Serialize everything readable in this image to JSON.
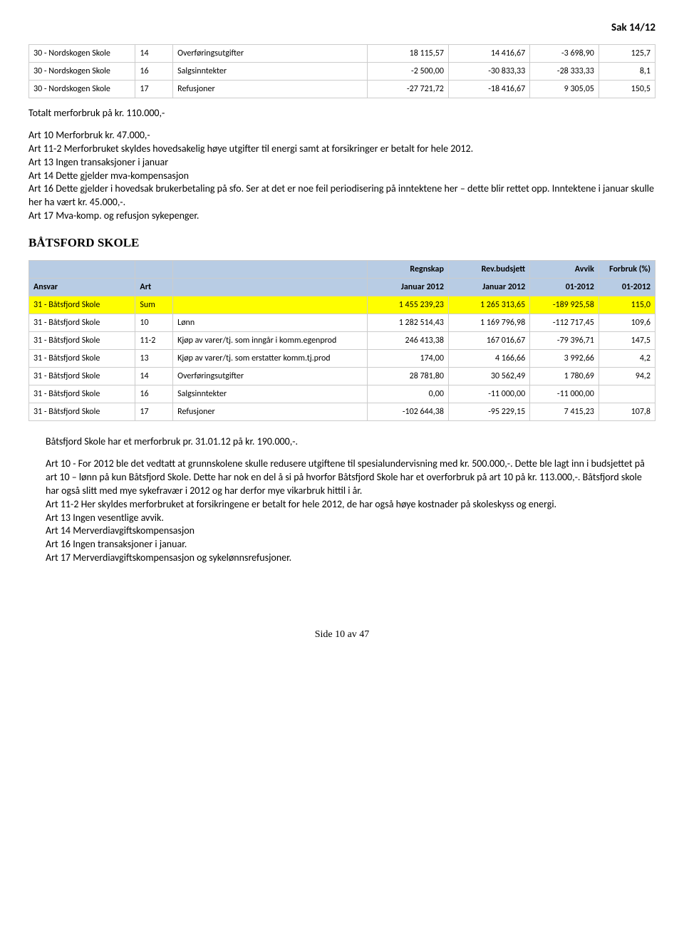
{
  "page_header": "Sak 14/12",
  "table1": {
    "rows": [
      [
        "30 - Nordskogen Skole",
        "14",
        "Overføringsutgifter",
        "18 115,57",
        "14 416,67",
        "-3 698,90",
        "125,7"
      ],
      [
        "30 - Nordskogen Skole",
        "16",
        "Salgsinntekter",
        "-2 500,00",
        "-30 833,33",
        "-28 333,33",
        "8,1"
      ],
      [
        "30 - Nordskogen Skole",
        "17",
        "Refusjoner",
        "-27 721,72",
        "-18 416,67",
        "9 305,05",
        "150,5"
      ]
    ]
  },
  "para1": "Totalt merforbruk på kr. 110.000,-",
  "para2": "Art 10 Merforbruk kr. 47.000,-\nArt 11-2 Merforbruket skyldes hovedsakelig høye utgifter til energi samt at forsikringer er betalt for hele 2012.\nArt 13 Ingen transaksjoner i januar\nArt 14 Dette gjelder mva-kompensasjon\nArt 16 Dette gjelder i hovedsak brukerbetaling på sfo. Ser at det er noe feil periodisering på inntektene her – dette blir rettet opp. Inntektene i januar skulle her ha vært kr. 45.000,-.\nArt 17 Mva-komp. og refusjon sykepenger.",
  "section2_title": "BÅTSFORD SKOLE",
  "table2": {
    "header1": [
      "",
      "",
      "",
      "Regnskap",
      "Rev.budsjett",
      "Avvik",
      "Forbruk (%)"
    ],
    "header2": [
      "Ansvar",
      "Art",
      "",
      "Januar 2012",
      "Januar 2012",
      "01-2012",
      "01-2012"
    ],
    "sumrow": [
      "31 - Båtsfjord Skole",
      "Sum",
      "",
      "1 455 239,23",
      "1 265 313,65",
      "-189 925,58",
      "115,0"
    ],
    "rows": [
      [
        "31 - Båtsfjord Skole",
        "10",
        "Lønn",
        "1 282 514,43",
        "1 169 796,98",
        "-112 717,45",
        "109,6"
      ],
      [
        "31 - Båtsfjord Skole",
        "11-2",
        "Kjøp av varer/tj. som inngår i komm.egenprod",
        "246 413,38",
        "167 016,67",
        "-79 396,71",
        "147,5"
      ],
      [
        "31 - Båtsfjord Skole",
        "13",
        "Kjøp av varer/tj. som erstatter komm.tj.prod",
        "174,00",
        "4 166,66",
        "3 992,66",
        "4,2"
      ],
      [
        "31 - Båtsfjord Skole",
        "14",
        "Overføringsutgifter",
        "28 781,80",
        "30 562,49",
        "1 780,69",
        "94,2"
      ],
      [
        "31 - Båtsfjord Skole",
        "16",
        "Salgsinntekter",
        "0,00",
        "-11 000,00",
        "-11 000,00",
        ""
      ],
      [
        "31 - Båtsfjord Skole",
        "17",
        "Refusjoner",
        "-102 644,38",
        "-95 229,15",
        "7 415,23",
        "107,8"
      ]
    ]
  },
  "para3": "Båtsfjord Skole har et merforbruk pr. 31.01.12 på kr. 190.000,-.",
  "para4": "Art 10 - For 2012 ble det vedtatt at grunnskolene skulle redusere utgiftene til spesialundervisning med kr. 500.000,-. Dette ble lagt inn i budsjettet på art 10 – lønn på kun Båtsfjord Skole. Dette har nok en del å si på hvorfor Båtsfjord Skole har et overforbruk på art 10 på kr. 113.000,-. Båtsfjord skole har også slitt med mye sykefravær i 2012 og har derfor mye vikarbruk hittil i år.\nArt 11-2 Her skyldes merforbruket at forsikringene er betalt for hele 2012, de har også høye kostnader på skoleskyss og energi.\nArt 13 Ingen vesentlige avvik.\nArt 14 Merverdiavgiftskompensasjon\nArt 16 Ingen transaksjoner i januar.\nArt 17 Merverdiavgiftskompensasjon og sykelønnsrefusjoner.",
  "footer": "Side 10 av 47",
  "colwidths": [
    "17%",
    "6%",
    "31%",
    "13%",
    "13%",
    "11%",
    "9%"
  ]
}
